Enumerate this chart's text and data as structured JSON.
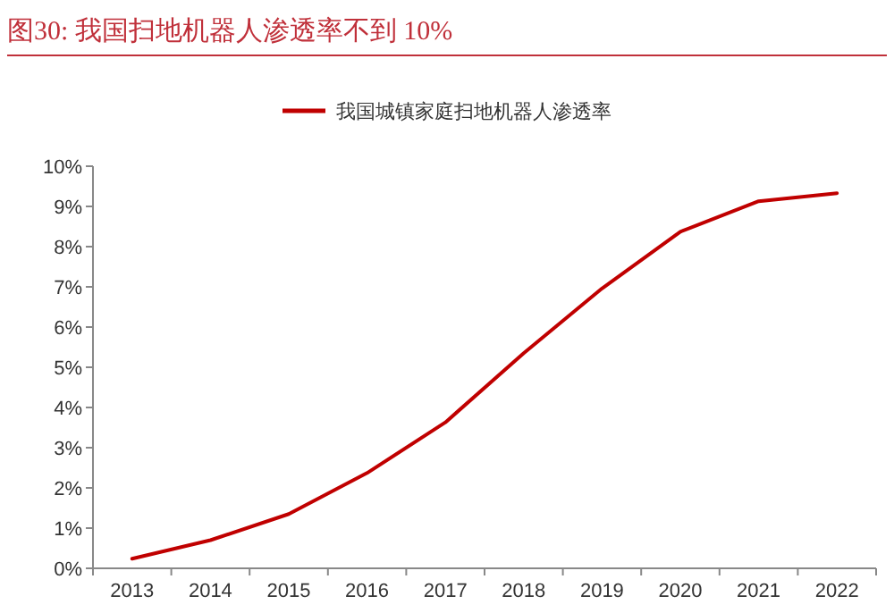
{
  "chart_data": {
    "type": "line",
    "title": "图30:   我国扫地机器人渗透率不到 10%",
    "categories": [
      "2013",
      "2014",
      "2015",
      "2016",
      "2017",
      "2018",
      "2019",
      "2020",
      "2021",
      "2022"
    ],
    "series": [
      {
        "name": "我国城镇家庭扫地机器人渗透率",
        "color": "#c00000",
        "values": [
          0.24,
          0.7,
          1.35,
          2.37,
          3.63,
          5.35,
          6.96,
          8.37,
          9.13,
          9.33
        ]
      }
    ],
    "ylim": [
      0,
      10
    ],
    "yticks": [
      {
        "value": 0,
        "label": "0%"
      },
      {
        "value": 1,
        "label": "1%"
      },
      {
        "value": 2,
        "label": "2%"
      },
      {
        "value": 3,
        "label": "3%"
      },
      {
        "value": 4,
        "label": "4%"
      },
      {
        "value": 5,
        "label": "5%"
      },
      {
        "value": 6,
        "label": "6%"
      },
      {
        "value": 7,
        "label": "7%"
      },
      {
        "value": 8,
        "label": "8%"
      },
      {
        "value": 9,
        "label": "9%"
      },
      {
        "value": 10,
        "label": "10%"
      }
    ],
    "legend": "top",
    "grid": false
  }
}
